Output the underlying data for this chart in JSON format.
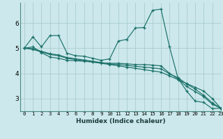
{
  "title": "",
  "xlabel": "Humidex (Indice chaleur)",
  "ylabel": "",
  "bg_color": "#cce8ec",
  "grid_color": "#aacccc",
  "line_color": "#1a7068",
  "xlim": [
    -0.5,
    23
  ],
  "ylim": [
    2.5,
    6.8
  ],
  "xticks": [
    0,
    1,
    2,
    3,
    4,
    5,
    6,
    7,
    8,
    9,
    10,
    11,
    12,
    13,
    14,
    15,
    16,
    17,
    18,
    19,
    20,
    21,
    22,
    23
  ],
  "yticks": [
    3,
    4,
    5,
    6
  ],
  "series": [
    [
      5.0,
      5.45,
      5.05,
      5.5,
      5.5,
      4.8,
      4.7,
      4.68,
      4.6,
      4.52,
      4.58,
      5.28,
      5.35,
      5.8,
      5.82,
      6.5,
      6.55,
      5.05,
      3.8,
      3.3,
      2.9,
      2.85,
      2.6,
      2.62
    ],
    [
      5.0,
      5.05,
      4.82,
      4.65,
      4.6,
      4.52,
      4.5,
      4.48,
      4.45,
      4.42,
      4.4,
      4.4,
      4.38,
      4.35,
      4.35,
      4.33,
      4.3,
      4.0,
      3.78,
      3.48,
      3.28,
      3.08,
      2.78,
      2.62
    ],
    [
      5.0,
      4.95,
      4.85,
      4.75,
      4.7,
      4.6,
      4.55,
      4.5,
      4.45,
      4.4,
      4.35,
      4.3,
      4.25,
      4.2,
      4.15,
      4.1,
      4.05,
      3.9,
      3.75,
      3.6,
      3.45,
      3.3,
      3.0,
      2.62
    ],
    [
      5.0,
      4.98,
      4.88,
      4.78,
      4.73,
      4.63,
      4.58,
      4.53,
      4.48,
      4.43,
      4.38,
      4.35,
      4.32,
      4.28,
      4.25,
      4.22,
      4.18,
      3.98,
      3.83,
      3.58,
      3.38,
      3.13,
      2.83,
      2.62
    ]
  ]
}
